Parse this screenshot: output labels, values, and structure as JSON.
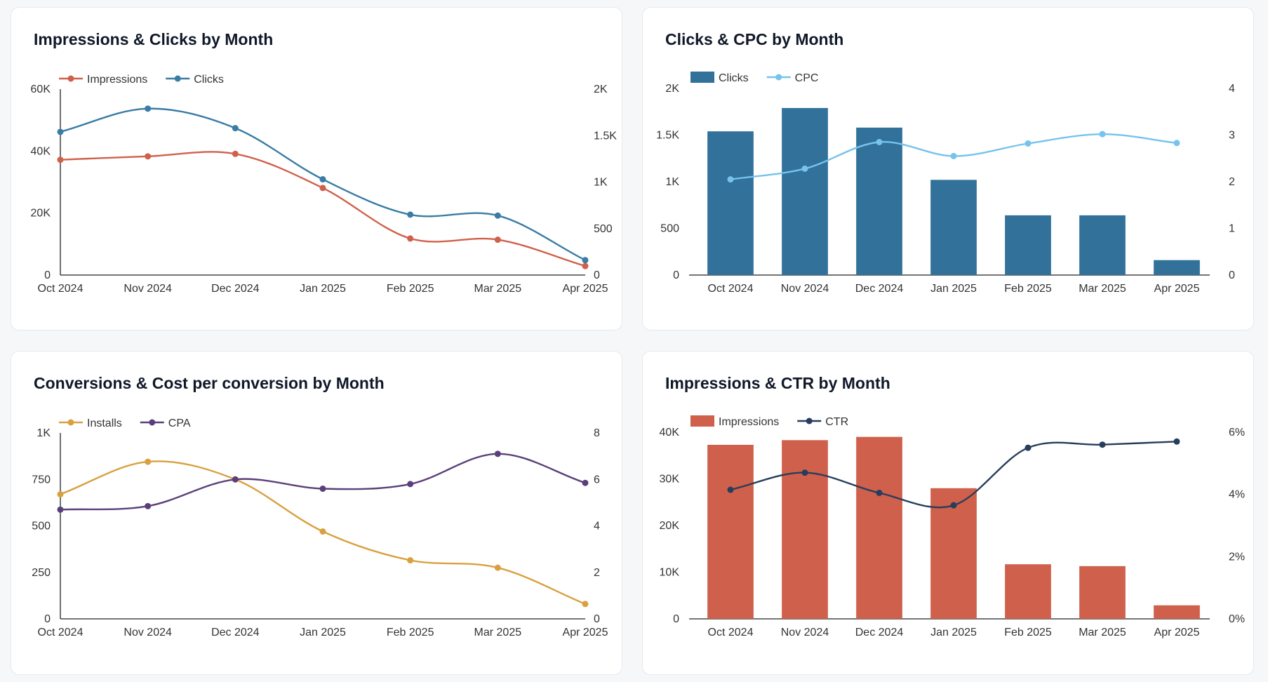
{
  "charts": [
    {
      "id": "impressions-clicks",
      "type": "line",
      "title": "Impressions & Clicks by Month",
      "categories": [
        "Oct 2024",
        "Nov 2024",
        "Dec 2024",
        "Jan 2025",
        "Feb 2025",
        "Mar 2025",
        "Apr 2025"
      ],
      "left_axis": {
        "min": 0,
        "max": 60000,
        "ticks": [
          0,
          20000,
          40000,
          60000
        ],
        "tick_labels": [
          "0",
          "20K",
          "40K",
          "60K"
        ]
      },
      "right_axis": {
        "min": 0,
        "max": 2000,
        "ticks": [
          0,
          500,
          1000,
          1500,
          2000
        ],
        "tick_labels": [
          "0",
          "500",
          "1K",
          "1.5K",
          "2K"
        ]
      },
      "series": [
        {
          "name": "Impressions",
          "kind": "line",
          "axis": "left",
          "color": "#d0604b",
          "values": [
            37200,
            38300,
            39100,
            28100,
            11800,
            11400,
            2900
          ]
        },
        {
          "name": "Clicks",
          "kind": "line",
          "axis": "right",
          "color": "#3a7ca5",
          "values": [
            1540,
            1790,
            1580,
            1030,
            650,
            640,
            160
          ]
        }
      ]
    },
    {
      "id": "clicks-cpc",
      "type": "bar",
      "title": "Clicks & CPC by Month",
      "categories": [
        "Oct 2024",
        "Nov 2024",
        "Dec 2024",
        "Jan 2025",
        "Feb 2025",
        "Mar 2025",
        "Apr 2025"
      ],
      "left_axis": {
        "min": 0,
        "max": 2000,
        "ticks": [
          0,
          500,
          1000,
          1500,
          2000
        ],
        "tick_labels": [
          "0",
          "500",
          "1K",
          "1.5K",
          "2K"
        ]
      },
      "right_axis": {
        "min": 0,
        "max": 4,
        "ticks": [
          0,
          1,
          2,
          3,
          4
        ],
        "tick_labels": [
          "0",
          "1",
          "2",
          "3",
          "4"
        ]
      },
      "series": [
        {
          "name": "Clicks",
          "kind": "bar",
          "axis": "left",
          "color": "#31719a",
          "values": [
            1540,
            1790,
            1580,
            1020,
            640,
            640,
            160
          ]
        },
        {
          "name": "CPC",
          "kind": "line",
          "axis": "right",
          "color": "#76c3ec",
          "values": [
            2.05,
            2.28,
            2.85,
            2.55,
            2.82,
            3.02,
            2.83
          ]
        }
      ]
    },
    {
      "id": "conversions-cpa",
      "type": "line",
      "title": "Conversions & Cost per conversion by Month",
      "categories": [
        "Oct 2024",
        "Nov 2024",
        "Dec 2024",
        "Jan 2025",
        "Feb 2025",
        "Mar 2025",
        "Apr 2025"
      ],
      "left_axis": {
        "min": 0,
        "max": 1000,
        "ticks": [
          0,
          250,
          500,
          750,
          1000
        ],
        "tick_labels": [
          "0",
          "250",
          "500",
          "750",
          "1K"
        ]
      },
      "right_axis": {
        "min": 0,
        "max": 8,
        "ticks": [
          0,
          2,
          4,
          6,
          8
        ],
        "tick_labels": [
          "0",
          "2",
          "4",
          "6",
          "8"
        ]
      },
      "series": [
        {
          "name": "Installs",
          "kind": "line",
          "axis": "left",
          "color": "#d9a040",
          "values": [
            670,
            845,
            750,
            470,
            315,
            275,
            80
          ]
        },
        {
          "name": "CPA",
          "kind": "line",
          "axis": "right",
          "color": "#5b3f7a",
          "values": [
            4.7,
            4.85,
            6.0,
            5.6,
            5.8,
            7.1,
            5.85
          ]
        }
      ]
    },
    {
      "id": "impressions-ctr",
      "type": "bar",
      "title": "Impressions & CTR by Month",
      "categories": [
        "Oct 2024",
        "Nov 2024",
        "Dec 2024",
        "Jan 2025",
        "Feb 2025",
        "Mar 2025",
        "Apr 2025"
      ],
      "left_axis": {
        "min": 0,
        "max": 40000,
        "ticks": [
          0,
          10000,
          20000,
          30000,
          40000
        ],
        "tick_labels": [
          "0",
          "10K",
          "20K",
          "30K",
          "40K"
        ]
      },
      "right_axis": {
        "min": 0,
        "max": 6,
        "ticks": [
          0,
          2,
          4,
          6
        ],
        "tick_labels": [
          "0%",
          "2%",
          "4%",
          "6%"
        ]
      },
      "series": [
        {
          "name": "Impressions",
          "kind": "bar",
          "axis": "left",
          "color": "#cf604c",
          "values": [
            37300,
            38300,
            39000,
            28000,
            11700,
            11300,
            2900
          ]
        },
        {
          "name": "CTR",
          "kind": "line",
          "axis": "right",
          "color": "#263e5c",
          "values": [
            4.15,
            4.7,
            4.05,
            3.65,
            5.5,
            5.6,
            5.7
          ]
        }
      ]
    }
  ]
}
